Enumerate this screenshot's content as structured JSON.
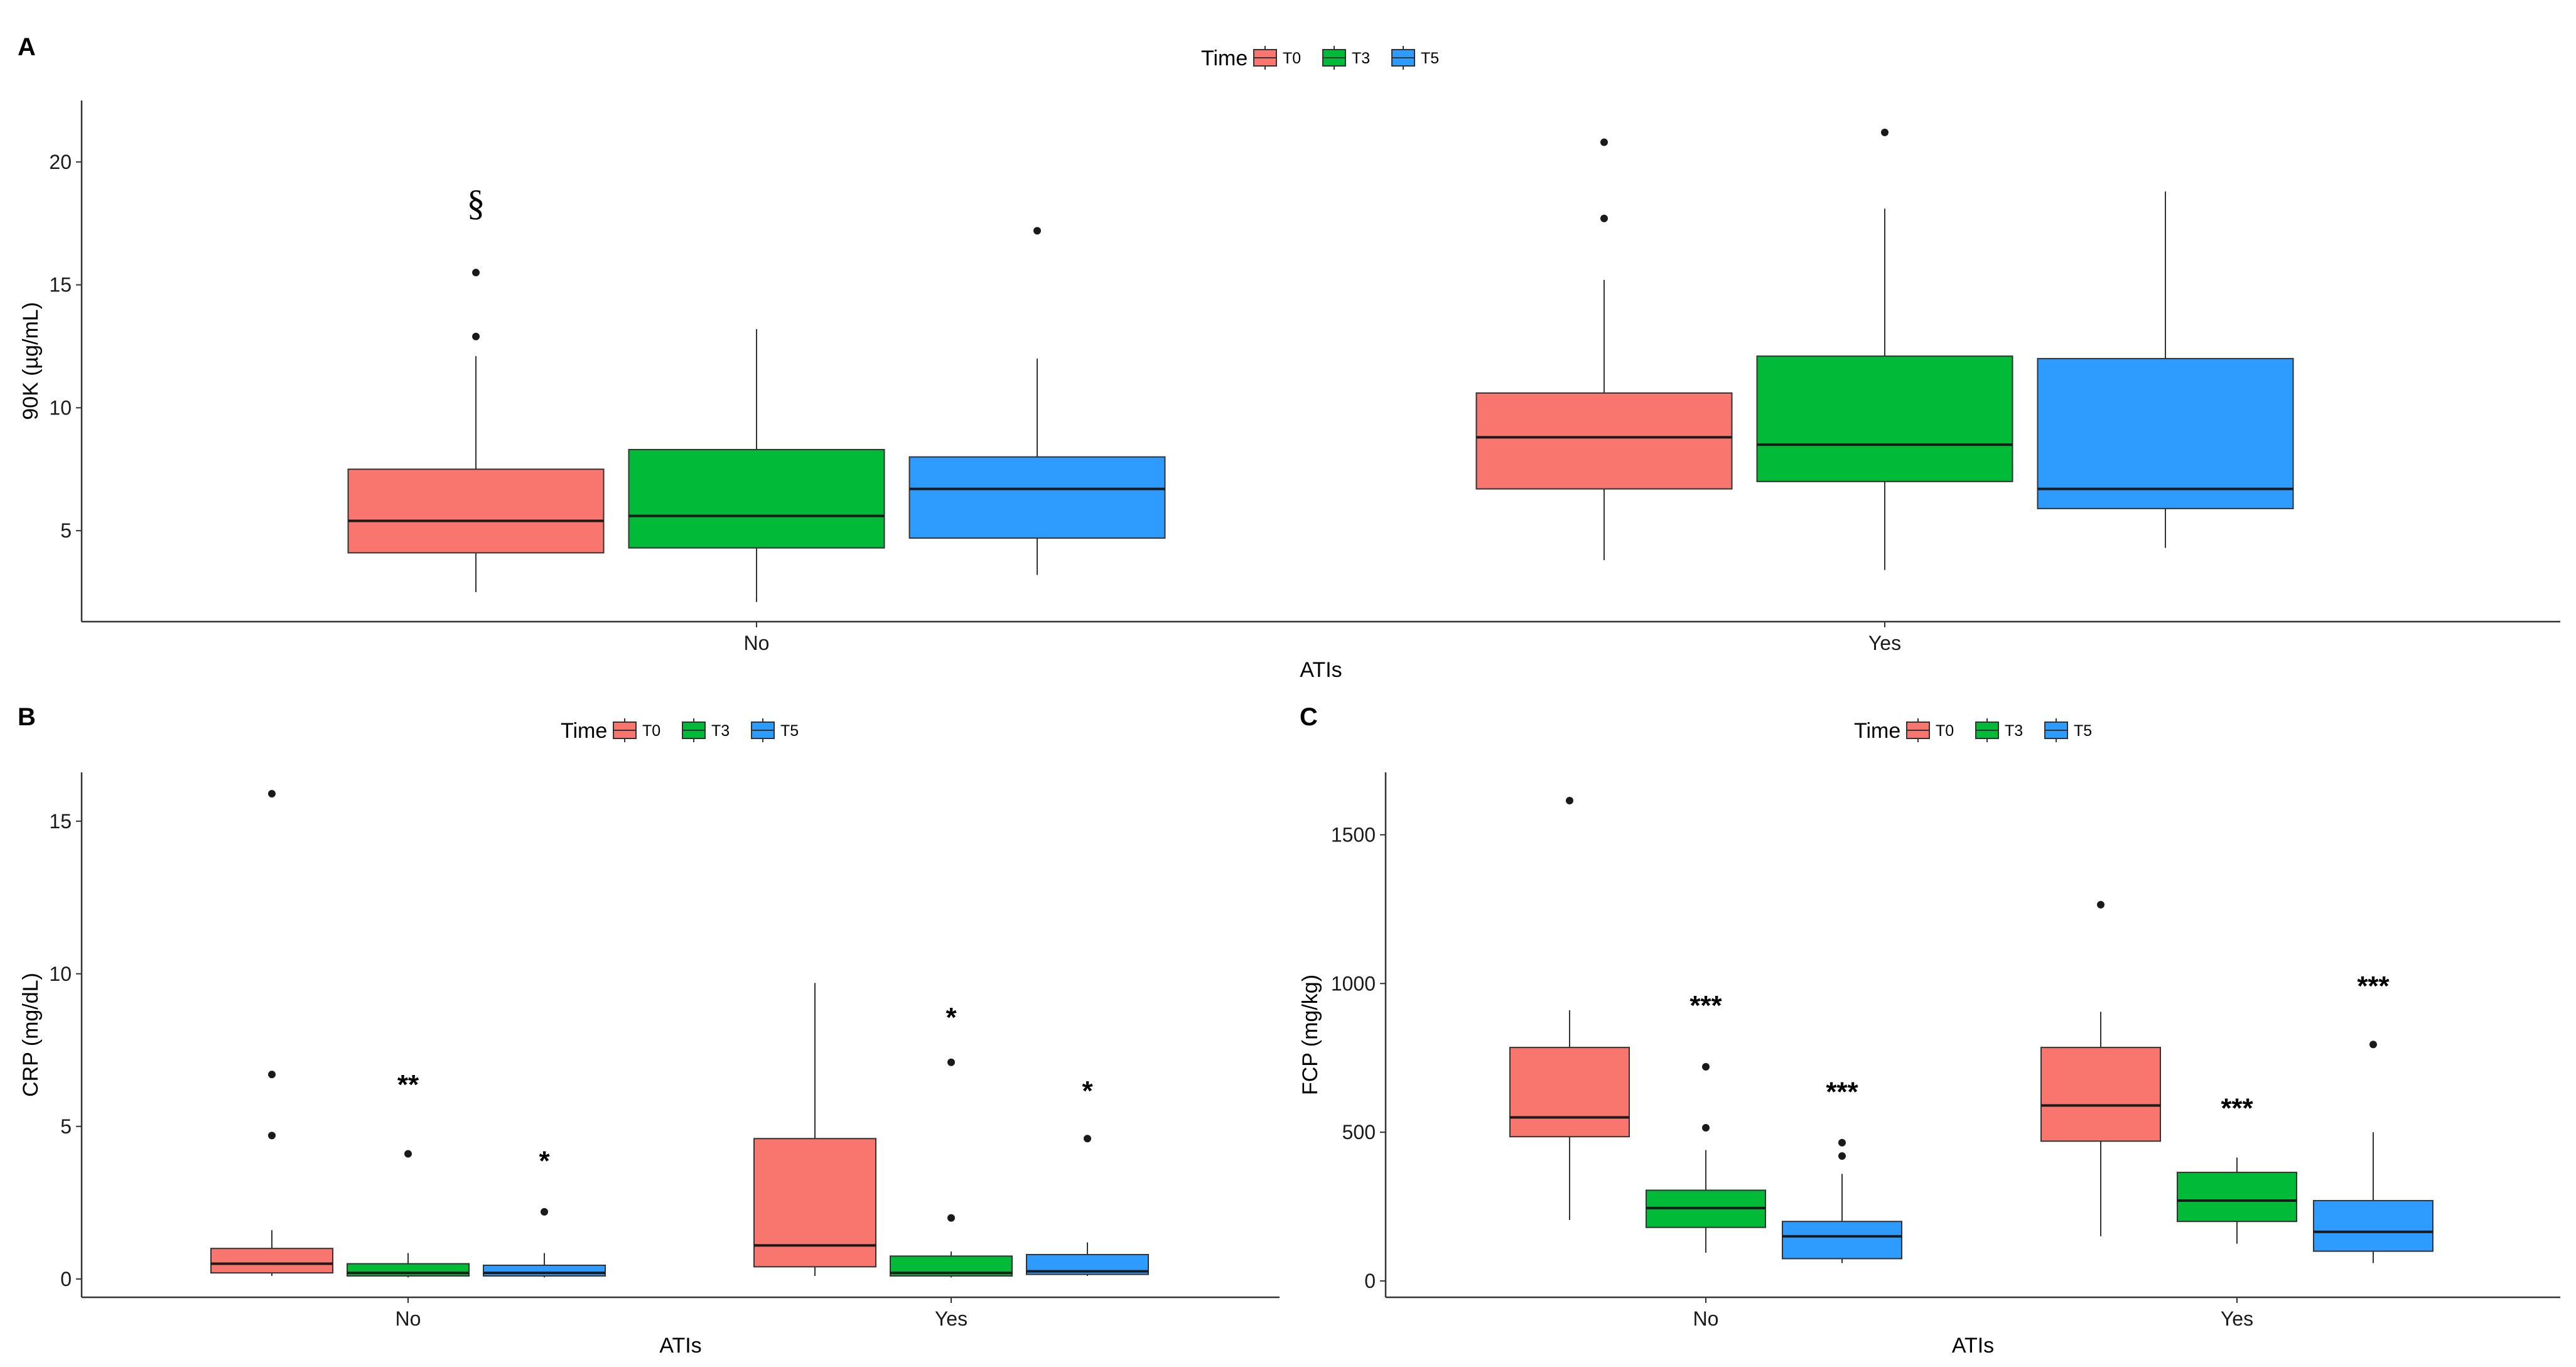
{
  "figure": {
    "colors": {
      "T0": "#F8766D",
      "T3": "#00BA38",
      "T5": "#2D9BFF"
    }
  },
  "chart_data": [
    {
      "panel_label": "A",
      "type": "boxplot",
      "title": "",
      "xlabel": "ATIs",
      "ylabel": "90K (µg/mL)",
      "ylim": [
        1.3,
        22.5
      ],
      "yticks": [
        5,
        10,
        15,
        20
      ],
      "legend": {
        "title": "Time",
        "entries": [
          "T0",
          "T3",
          "T5"
        ],
        "placement": "top-center"
      },
      "categories": [
        "No",
        "Yes"
      ],
      "series": [
        {
          "name": "T0",
          "color": "#F8766D",
          "boxes": [
            {
              "category": "No",
              "lower_whisker": 2.5,
              "q1": 4.1,
              "median": 5.4,
              "q3": 7.5,
              "upper_whisker": 12.1,
              "outliers": [
                12.9,
                15.5
              ]
            },
            {
              "category": "Yes",
              "lower_whisker": 3.8,
              "q1": 6.7,
              "median": 8.8,
              "q3": 10.6,
              "upper_whisker": 15.2,
              "outliers": [
                17.7,
                20.8
              ]
            }
          ]
        },
        {
          "name": "T3",
          "color": "#00BA38",
          "boxes": [
            {
              "category": "No",
              "lower_whisker": 2.1,
              "q1": 4.3,
              "median": 5.6,
              "q3": 8.3,
              "upper_whisker": 13.2,
              "outliers": []
            },
            {
              "category": "Yes",
              "lower_whisker": 3.4,
              "q1": 7.0,
              "median": 8.5,
              "q3": 12.1,
              "upper_whisker": 18.1,
              "outliers": [
                21.2
              ]
            }
          ]
        },
        {
          "name": "T5",
          "color": "#2D9BFF",
          "boxes": [
            {
              "category": "No",
              "lower_whisker": 3.2,
              "q1": 4.7,
              "median": 6.7,
              "q3": 8.0,
              "upper_whisker": 12.0,
              "outliers": [
                17.2
              ]
            },
            {
              "category": "Yes",
              "lower_whisker": 4.3,
              "q1": 5.9,
              "median": 6.7,
              "q3": 12.0,
              "upper_whisker": 18.8,
              "outliers": []
            }
          ]
        }
      ],
      "annotations": [
        {
          "series": "T0",
          "category": "No",
          "text": "§",
          "value": 18.3
        }
      ]
    },
    {
      "panel_label": "B",
      "type": "boxplot",
      "title": "",
      "xlabel": "ATIs",
      "ylabel": "CRP (mg/dL)",
      "ylim": [
        -0.6,
        16.6
      ],
      "yticks": [
        0,
        5,
        10,
        15
      ],
      "legend": {
        "title": "Time",
        "entries": [
          "T0",
          "T3",
          "T5"
        ],
        "placement": "top-center"
      },
      "categories": [
        "No",
        "Yes"
      ],
      "series": [
        {
          "name": "T0",
          "color": "#F8766D",
          "boxes": [
            {
              "category": "No",
              "lower_whisker": 0.1,
              "q1": 0.2,
              "median": 0.5,
              "q3": 1.0,
              "upper_whisker": 1.6,
              "outliers": [
                4.7,
                6.7,
                15.9
              ]
            },
            {
              "category": "Yes",
              "lower_whisker": 0.1,
              "q1": 0.4,
              "median": 1.1,
              "q3": 4.6,
              "upper_whisker": 9.7,
              "outliers": []
            }
          ]
        },
        {
          "name": "T3",
          "color": "#00BA38",
          "boxes": [
            {
              "category": "No",
              "lower_whisker": 0.05,
              "q1": 0.1,
              "median": 0.2,
              "q3": 0.5,
              "upper_whisker": 0.85,
              "outliers": [
                4.1
              ]
            },
            {
              "category": "Yes",
              "lower_whisker": 0.05,
              "q1": 0.1,
              "median": 0.2,
              "q3": 0.75,
              "upper_whisker": 0.9,
              "outliers": [
                2.0,
                7.1
              ]
            }
          ]
        },
        {
          "name": "T5",
          "color": "#2D9BFF",
          "boxes": [
            {
              "category": "No",
              "lower_whisker": 0.05,
              "q1": 0.1,
              "median": 0.2,
              "q3": 0.45,
              "upper_whisker": 0.85,
              "outliers": [
                2.2
              ]
            },
            {
              "category": "Yes",
              "lower_whisker": 0.1,
              "q1": 0.15,
              "median": 0.25,
              "q3": 0.8,
              "upper_whisker": 1.2,
              "outliers": [
                4.6
              ]
            }
          ]
        }
      ],
      "annotations": [
        {
          "series": "T3",
          "category": "No",
          "text": "**",
          "value": 6.6
        },
        {
          "series": "T5",
          "category": "No",
          "text": "*",
          "value": 4.1
        },
        {
          "series": "T3",
          "category": "Yes",
          "text": "*",
          "value": 8.8
        },
        {
          "series": "T5",
          "category": "Yes",
          "text": "*",
          "value": 6.4
        }
      ]
    },
    {
      "panel_label": "C",
      "type": "boxplot",
      "title": "",
      "xlabel": "ATIs",
      "ylabel": "FCP (mg/kg)",
      "ylim": [
        -55,
        1710
      ],
      "yticks": [
        0,
        500,
        1000,
        1500
      ],
      "legend": {
        "title": "Time",
        "entries": [
          "T0",
          "T3",
          "T5"
        ],
        "placement": "top-center"
      },
      "categories": [
        "No",
        "Yes"
      ],
      "series": [
        {
          "name": "T0",
          "color": "#F8766D",
          "boxes": [
            {
              "category": "No",
              "lower_whisker": 205,
              "q1": 485,
              "median": 550,
              "q3": 785,
              "upper_whisker": 910,
              "outliers": [
                1615
              ]
            },
            {
              "category": "Yes",
              "lower_whisker": 150,
              "q1": 470,
              "median": 590,
              "q3": 785,
              "upper_whisker": 905,
              "outliers": [
                1265
              ]
            }
          ]
        },
        {
          "name": "T3",
          "color": "#00BA38",
          "boxes": [
            {
              "category": "No",
              "lower_whisker": 95,
              "q1": 180,
              "median": 245,
              "q3": 305,
              "upper_whisker": 440,
              "outliers": [
                515,
                720
              ]
            },
            {
              "category": "Yes",
              "lower_whisker": 125,
              "q1": 200,
              "median": 270,
              "q3": 365,
              "upper_whisker": 415,
              "outliers": []
            }
          ]
        },
        {
          "name": "T5",
          "color": "#2D9BFF",
          "boxes": [
            {
              "category": "No",
              "lower_whisker": 60,
              "q1": 75,
              "median": 150,
              "q3": 200,
              "upper_whisker": 360,
              "outliers": [
                420,
                465
              ]
            },
            {
              "category": "Yes",
              "lower_whisker": 60,
              "q1": 100,
              "median": 165,
              "q3": 270,
              "upper_whisker": 500,
              "outliers": [
                795
              ]
            }
          ]
        }
      ],
      "annotations": [
        {
          "series": "T3",
          "category": "No",
          "text": "***",
          "value": 950
        },
        {
          "series": "T5",
          "category": "No",
          "text": "***",
          "value": 660
        },
        {
          "series": "T3",
          "category": "Yes",
          "text": "***",
          "value": 605
        },
        {
          "series": "T5",
          "category": "Yes",
          "text": "***",
          "value": 1015
        }
      ]
    }
  ]
}
